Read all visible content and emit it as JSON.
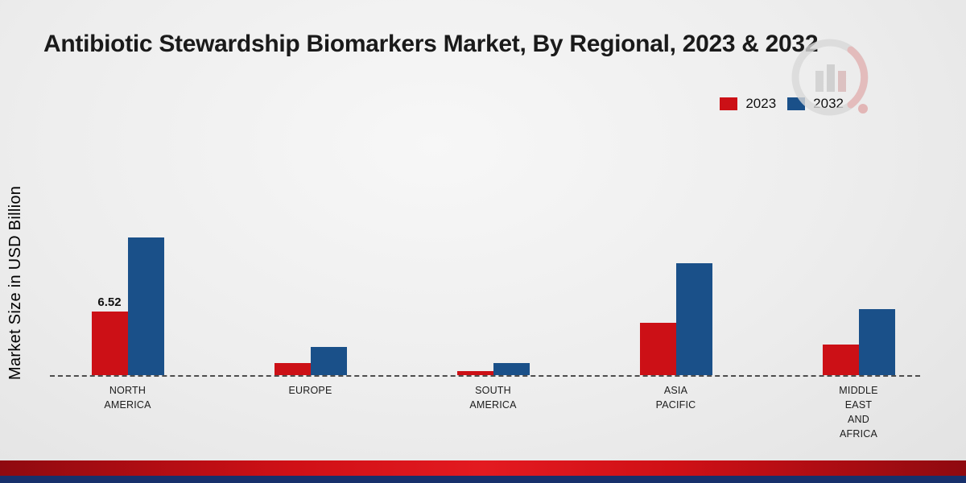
{
  "title": "Antibiotic Stewardship Biomarkers Market, By Regional, 2023 & 2032",
  "ylabel": "Market Size in USD Billion",
  "legend": {
    "items": [
      {
        "label": "2023",
        "color": "#cc1016"
      },
      {
        "label": "2032",
        "color": "#1a5089"
      }
    ]
  },
  "chart_data": {
    "type": "bar",
    "title": "Antibiotic Stewardship Biomarkers Market, By Regional, 2023 & 2032",
    "xlabel": "",
    "ylabel": "Market Size in USD Billion",
    "categories": [
      "NORTH AMERICA",
      "EUROPE",
      "SOUTH AMERICA",
      "ASIA PACIFIC",
      "MIDDLE EAST AND AFRICA"
    ],
    "category_lines": [
      [
        "NORTH",
        "AMERICA"
      ],
      [
        "EUROPE"
      ],
      [
        "SOUTH",
        "AMERICA"
      ],
      [
        "ASIA",
        "PACIFIC"
      ],
      [
        "MIDDLE",
        "EAST",
        "AND",
        "AFRICA"
      ]
    ],
    "series": [
      {
        "name": "2023",
        "color": "#cc1016",
        "values": [
          6.52,
          1.2,
          0.45,
          5.3,
          3.1
        ]
      },
      {
        "name": "2032",
        "color": "#1a5089",
        "values": [
          14.0,
          2.9,
          1.2,
          11.4,
          6.7
        ]
      }
    ],
    "annotations": [
      {
        "series": "2023",
        "category_index": 0,
        "text": "6.52"
      }
    ],
    "ylim": [
      0,
      15
    ],
    "grid": false,
    "legend_position": "top-right",
    "baseline_style": "dashed"
  },
  "colors": {
    "red": "#cc1016",
    "blue": "#1a5089",
    "footer_red": "#cf1016",
    "footer_navy": "#17306b",
    "background": "#ededed"
  }
}
